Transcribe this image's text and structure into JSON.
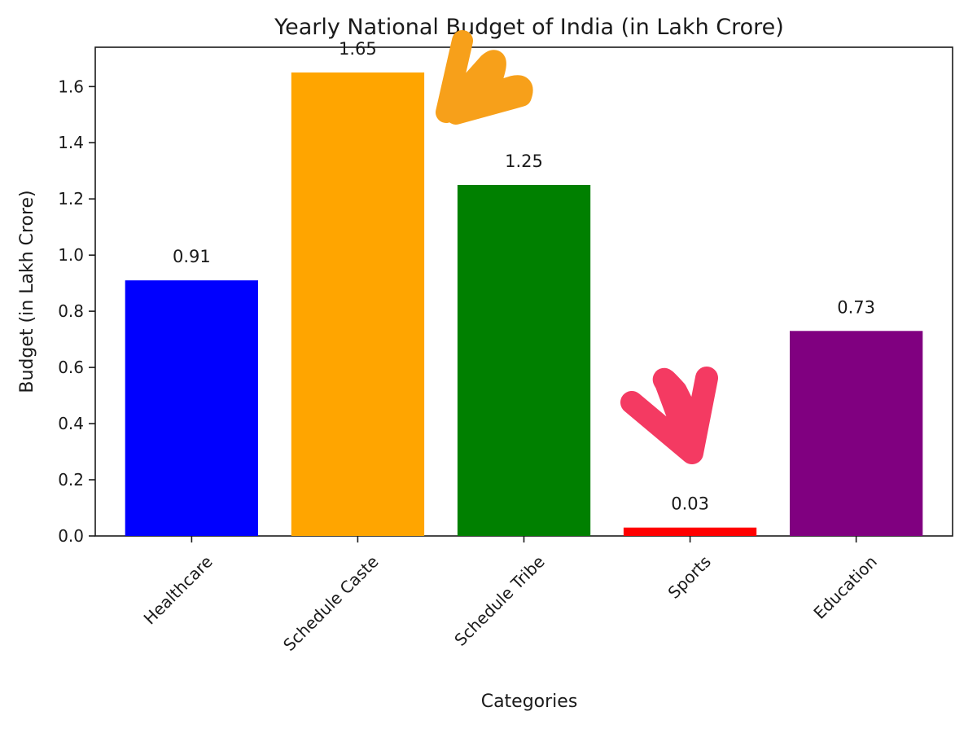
{
  "chart_data": {
    "type": "bar",
    "title": "Yearly National Budget of India (in Lakh Crore)",
    "xlabel": "Categories",
    "ylabel": "Budget (in Lakh Crore)",
    "categories": [
      "Healthcare",
      "Schedule Caste",
      "Schedule Tribe",
      "Sports",
      "Education"
    ],
    "values": [
      0.91,
      1.65,
      1.25,
      0.03,
      0.73
    ],
    "data_labels": [
      "0.91",
      "1.65",
      "1.25",
      "0.03",
      "0.73"
    ],
    "colors": [
      "#0000ff",
      "#ffa500",
      "#008000",
      "#ff0000",
      "#800080"
    ],
    "ylim": [
      0,
      1.74
    ],
    "yticks": [
      0.0,
      0.2,
      0.4,
      0.6,
      0.8,
      1.0,
      1.2,
      1.4,
      1.6
    ],
    "ytick_labels": [
      "0.0",
      "0.2",
      "0.4",
      "0.6",
      "0.8",
      "1.0",
      "1.2",
      "1.4",
      "1.6"
    ],
    "grid": false,
    "legend": "none",
    "annotations": [
      {
        "shape": "heart-arrow",
        "color": "#f7a01a",
        "points_to": "Schedule Caste"
      },
      {
        "shape": "heart-arrow",
        "color": "#f43a62",
        "points_to": "Sports"
      }
    ]
  }
}
